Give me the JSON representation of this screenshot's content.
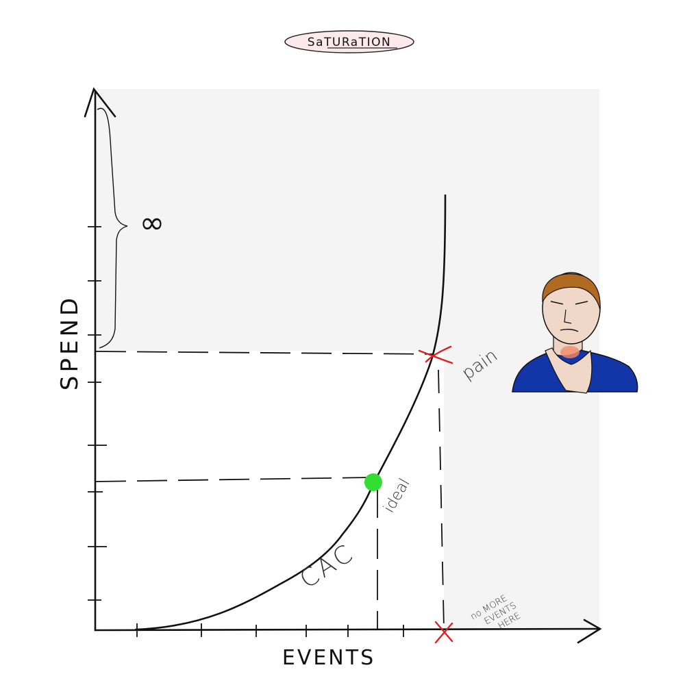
{
  "title": "SaTURaTION",
  "axes": {
    "x_label": "EVENTS",
    "y_label": "SPEND"
  },
  "annotations": {
    "infinity": "∞",
    "pain": "pain",
    "ideal": "ideal",
    "cac": "CAC",
    "no_more_events": [
      "no MORE",
      "EVENTS",
      "HERE"
    ]
  },
  "colors": {
    "curve": "#111111",
    "ideal_point": "#33dd33",
    "pain_mark": "#e02020",
    "shade": "#f4f4f4",
    "title_bubble": "#fbe9ee"
  },
  "icons": {
    "person": "person-with-sore-throat-icon"
  }
}
